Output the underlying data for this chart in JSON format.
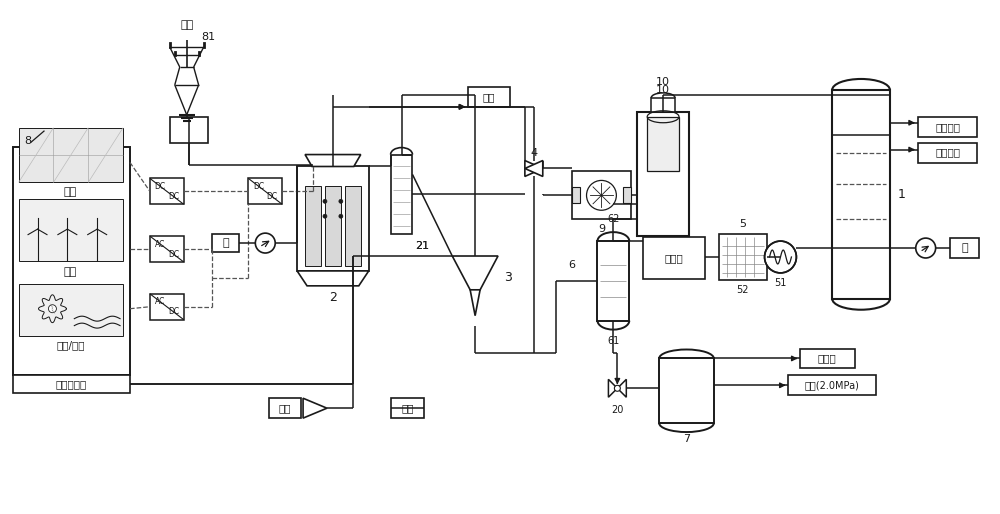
{
  "bg": "#ffffff",
  "lc": "#1a1a1a",
  "dc": "#555555",
  "fw": 10.0,
  "fh": 5.14,
  "labels": {
    "grid": "电网",
    "n81": "81",
    "n8": "8",
    "solar": "光伏",
    "wind": "风电",
    "hydro": "水电/潮汐",
    "ih2": "工业副产氢",
    "water": "水",
    "air": "空气",
    "vent": "放空",
    "o2": "纯氧",
    "hpst": "高压蒸汽",
    "mpst": "中压蒸汽",
    "pgas": "弛放气",
    "lnh3": "液氨(2.0MPa)",
    "watin": "水",
    "refrig": "制冷机",
    "n1": "1",
    "n2": "2",
    "n3": "3",
    "n4": "4",
    "n5": "5",
    "n6": "6",
    "n7": "7",
    "n9": "9",
    "n10": "10",
    "n20": "20",
    "n21": "21",
    "n51": "51",
    "n52": "52",
    "n61": "61",
    "n62": "62"
  }
}
